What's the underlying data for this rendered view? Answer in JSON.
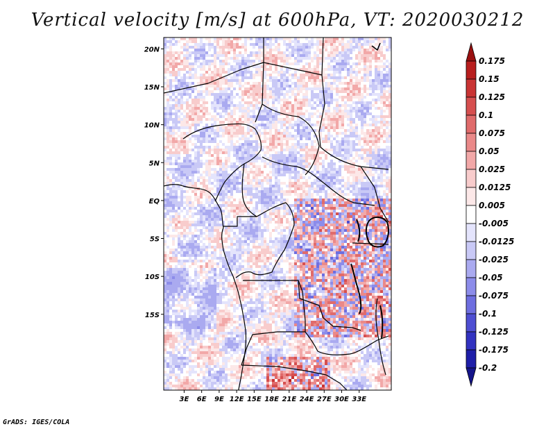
{
  "title": "Vertical velocity [m/s] at 600hPa, VT: 2020030212",
  "credit": "GrADS: IGES/COLA",
  "map": {
    "lon_range": [
      -0.5,
      38.5
    ],
    "lat_range": [
      -25,
      21.5
    ],
    "lat_ticks": [
      {
        "label": "20N",
        "lat": 20
      },
      {
        "label": "15N",
        "lat": 15
      },
      {
        "label": "10N",
        "lat": 10
      },
      {
        "label": "5N",
        "lat": 5
      },
      {
        "label": "EQ",
        "lat": 0
      },
      {
        "label": "5S",
        "lat": -5
      },
      {
        "label": "10S",
        "lat": -10
      },
      {
        "label": "15S",
        "lat": -15
      }
    ],
    "lon_ticks": [
      {
        "label": "3E",
        "lon": 3
      },
      {
        "label": "6E",
        "lon": 6
      },
      {
        "label": "9E",
        "lon": 9
      },
      {
        "label": "12E",
        "lon": 12
      },
      {
        "label": "15E",
        "lon": 15
      },
      {
        "label": "18E",
        "lon": 18
      },
      {
        "label": "21E",
        "lon": 21
      },
      {
        "label": "24E",
        "lon": 24
      },
      {
        "label": "27E",
        "lon": 27
      },
      {
        "label": "30E",
        "lon": 30
      },
      {
        "label": "33E",
        "lon": 33
      }
    ]
  },
  "colorbar": {
    "levels": [
      "0.175",
      "0.15",
      "0.125",
      "0.1",
      "0.075",
      "0.05",
      "0.025",
      "0.0125",
      "0.005",
      "-0.005",
      "-0.0125",
      "-0.025",
      "-0.05",
      "-0.075",
      "-0.1",
      "-0.125",
      "-0.175",
      "-0.2"
    ],
    "colors": [
      "#9a1010",
      "#b81e1e",
      "#c93434",
      "#d64f4f",
      "#e06b6b",
      "#ea8989",
      "#f2a8a8",
      "#f8cccc",
      "#fce8e8",
      "#ffffff",
      "#e4e4fc",
      "#c9c9f6",
      "#aaaaf0",
      "#8c8cea",
      "#6e6ee0",
      "#4e4ed2",
      "#3232c0",
      "#1e1ea8",
      "#14148a"
    ]
  }
}
